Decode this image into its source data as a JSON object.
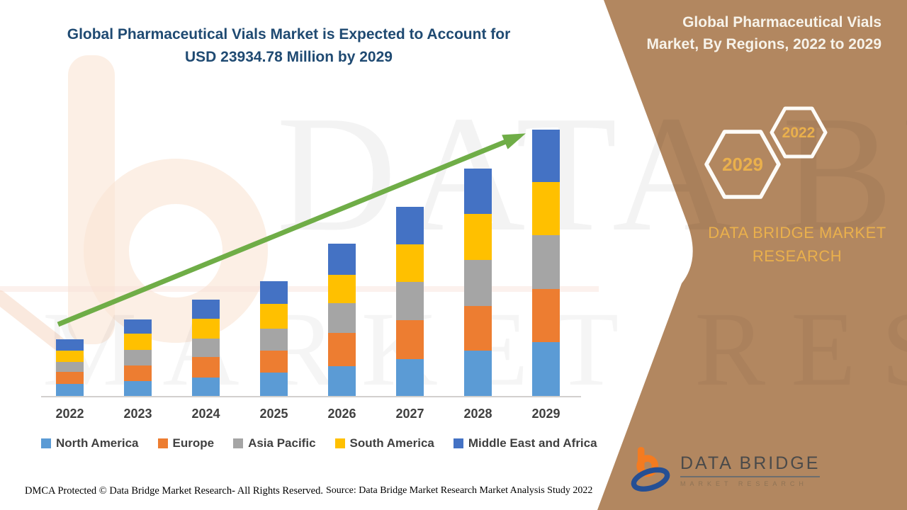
{
  "main_title": {
    "line1": "Global Pharmaceutical Vials Market is Expected to Account for",
    "line2": "USD 23934.78 Million by 2029"
  },
  "side_panel": {
    "heading_line1": "Global Pharmaceutical Vials",
    "heading_line2": "Market, By Regions, 2022 to 2029",
    "hexagon_large_label": "2029",
    "hexagon_small_label": "2022",
    "brand_line1": "DATA BRIDGE MARKET",
    "brand_line2": "RESEARCH"
  },
  "logo": {
    "name": "DATA BRIDGE",
    "tagline": "MARKET RESEARCH"
  },
  "watermark": {
    "row1": "DATA BRIDGE",
    "row2": "MARKET RESEARCH"
  },
  "footer": {
    "dmca": "DMCA Protected © Data Bridge Market Research- All Rights Reserved.",
    "source": "Source: Data Bridge Market Research Market Analysis Study 2022"
  },
  "colors": {
    "panel_brown": "#B28760",
    "accent_gold": "#EAB04C",
    "title_blue": "#1F4A72",
    "heading_cream": "#F7F3EA",
    "arrow_green": "#6FAD47",
    "axis_gray": "#D2D0CE",
    "label_gray": "#3F3F3F",
    "logo_orange": "#F47B20",
    "logo_blue": "#254F94"
  },
  "chart_data": {
    "type": "bar",
    "stacked": true,
    "unit": "USD Million",
    "title": "Global Pharmaceutical Vials Market is Expected to Account for USD 23934.78 Million by 2029",
    "categories": [
      "2022",
      "2023",
      "2024",
      "2025",
      "2026",
      "2027",
      "2028",
      "2029"
    ],
    "series": [
      {
        "name": "North America",
        "color": "#5B9BD5",
        "values": [
          1085,
          1340,
          1660,
          2106,
          2681,
          3319,
          4085,
          4851
        ]
      },
      {
        "name": "Europe",
        "color": "#ED7D31",
        "values": [
          1085,
          1404,
          1851,
          1979,
          3000,
          3511,
          4021,
          4787
        ]
      },
      {
        "name": "Asia Pacific",
        "color": "#A5A5A5",
        "values": [
          894,
          1404,
          1660,
          1979,
          2681,
          3447,
          4149,
          4787
        ]
      },
      {
        "name": "South America",
        "color": "#FFC000",
        "values": [
          1021,
          1468,
          1787,
          2234,
          2553,
          3383,
          4149,
          4787
        ]
      },
      {
        "name": "Middle East and Africa",
        "color": "#4472C4",
        "values": [
          1021,
          1277,
          1723,
          2043,
          2808,
          3383,
          4085,
          4722.78
        ]
      }
    ],
    "totals_by_year_estimated": [
      5106,
      6893,
      8681,
      10341,
      13723,
      17043,
      20489,
      23934.78
    ],
    "final_year_total": 23934.78,
    "y_axis_visible": false,
    "gridlines": false,
    "legend_position": "bottom",
    "annotations": {
      "trend_arrow": "upward diagonal arrow across bar tops"
    }
  }
}
